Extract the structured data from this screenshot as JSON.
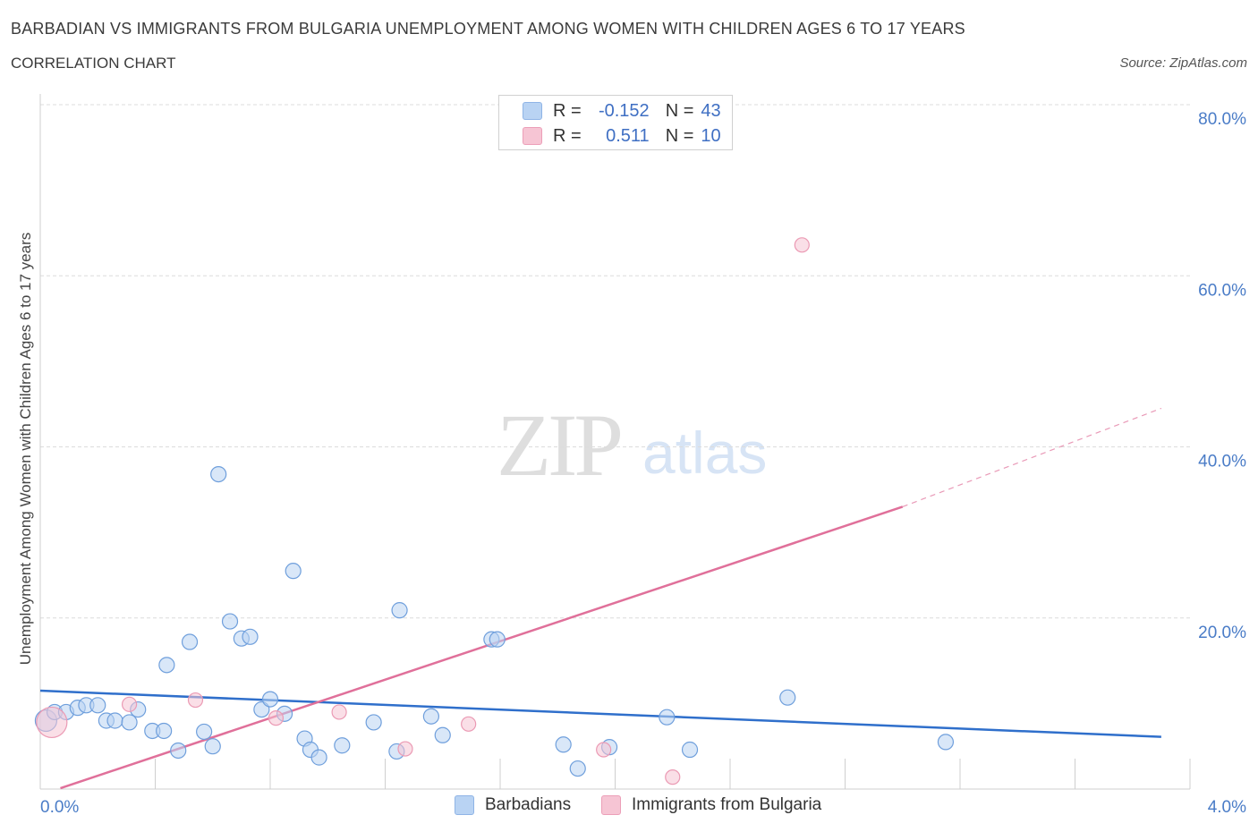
{
  "header": {
    "title": "BARBADIAN VS IMMIGRANTS FROM BULGARIA UNEMPLOYMENT AMONG WOMEN WITH CHILDREN AGES 6 TO 17 YEARS",
    "subtitle": "CORRELATION CHART",
    "source": "Source: ZipAtlas.com"
  },
  "watermark": {
    "zip": "ZIP",
    "atlas": "atlas"
  },
  "legend": {
    "rows": [
      {
        "r_label": "R =",
        "r_value": "-0.152",
        "n_label": "N =",
        "n_value": "43",
        "color": "#b9d3f3"
      },
      {
        "r_label": "R =",
        "r_value": "0.511",
        "n_label": "N =",
        "n_value": "10",
        "color": "#f6c5d4"
      }
    ]
  },
  "bottom_legend": {
    "barbadians": "Barbadians",
    "bulgaria": "Immigrants from Bulgaria"
  },
  "chart_data": {
    "type": "scatter",
    "title": "BARBADIAN VS IMMIGRANTS FROM BULGARIA UNEMPLOYMENT AMONG WOMEN WITH CHILDREN AGES 6 TO 17 YEARS",
    "xlabel": "",
    "ylabel": "Unemployment Among Women with Children Ages 6 to 17 years",
    "xlim": [
      0,
      4.0
    ],
    "ylim": [
      0,
      80
    ],
    "x_tick_labels": [
      "0.0%",
      "4.0%"
    ],
    "y_ticks": [
      20,
      40,
      60,
      80
    ],
    "y_tick_labels": [
      "20.0%",
      "40.0%",
      "60.0%",
      "80.0%"
    ],
    "grid": true,
    "colors": {
      "barbadians": "#5b94db",
      "bulgaria": "#e87fa0",
      "barbadians_line": "#2f6fcb",
      "bulgaria_line": "#e0709a"
    },
    "series": [
      {
        "name": "Barbadians",
        "points": [
          [
            0.02,
            8.0
          ],
          [
            0.05,
            9.0
          ],
          [
            0.09,
            9.0
          ],
          [
            0.13,
            9.5
          ],
          [
            0.16,
            9.8
          ],
          [
            0.2,
            9.8
          ],
          [
            0.23,
            8.0
          ],
          [
            0.26,
            8.0
          ],
          [
            0.31,
            7.8
          ],
          [
            0.34,
            9.3
          ],
          [
            0.39,
            6.8
          ],
          [
            0.43,
            6.8
          ],
          [
            0.44,
            14.5
          ],
          [
            0.48,
            4.5
          ],
          [
            0.52,
            17.2
          ],
          [
            0.57,
            6.7
          ],
          [
            0.6,
            5.0
          ],
          [
            0.62,
            36.8
          ],
          [
            0.66,
            19.6
          ],
          [
            0.7,
            17.6
          ],
          [
            0.73,
            17.8
          ],
          [
            0.77,
            9.3
          ],
          [
            0.8,
            10.5
          ],
          [
            0.85,
            8.8
          ],
          [
            0.88,
            25.5
          ],
          [
            0.92,
            5.9
          ],
          [
            0.94,
            4.6
          ],
          [
            0.97,
            3.7
          ],
          [
            1.05,
            5.1
          ],
          [
            1.16,
            7.8
          ],
          [
            1.25,
            20.9
          ],
          [
            1.24,
            4.4
          ],
          [
            1.36,
            8.5
          ],
          [
            1.4,
            6.3
          ],
          [
            1.57,
            17.5
          ],
          [
            1.59,
            17.5
          ],
          [
            1.82,
            5.2
          ],
          [
            1.87,
            2.4
          ],
          [
            1.98,
            4.9
          ],
          [
            2.18,
            8.4
          ],
          [
            2.26,
            4.6
          ],
          [
            2.6,
            10.7
          ],
          [
            3.15,
            5.5
          ]
        ],
        "trend": {
          "x": [
            0,
            3.9
          ],
          "y": [
            11.5,
            6.1
          ]
        }
      },
      {
        "name": "Immigrants from Bulgaria",
        "points": [
          [
            0.04,
            7.8
          ],
          [
            0.31,
            9.9
          ],
          [
            0.54,
            10.4
          ],
          [
            0.82,
            8.3
          ],
          [
            1.04,
            9.0
          ],
          [
            1.27,
            4.7
          ],
          [
            1.49,
            7.6
          ],
          [
            1.96,
            4.6
          ],
          [
            2.2,
            1.4
          ],
          [
            2.65,
            63.6
          ]
        ],
        "trend": {
          "x": [
            0.07,
            3.0
          ],
          "y": [
            0.1,
            33.0
          ]
        },
        "trend_extension": {
          "x": [
            3.0,
            3.9
          ],
          "y": [
            33.0,
            44.5
          ]
        }
      }
    ]
  }
}
